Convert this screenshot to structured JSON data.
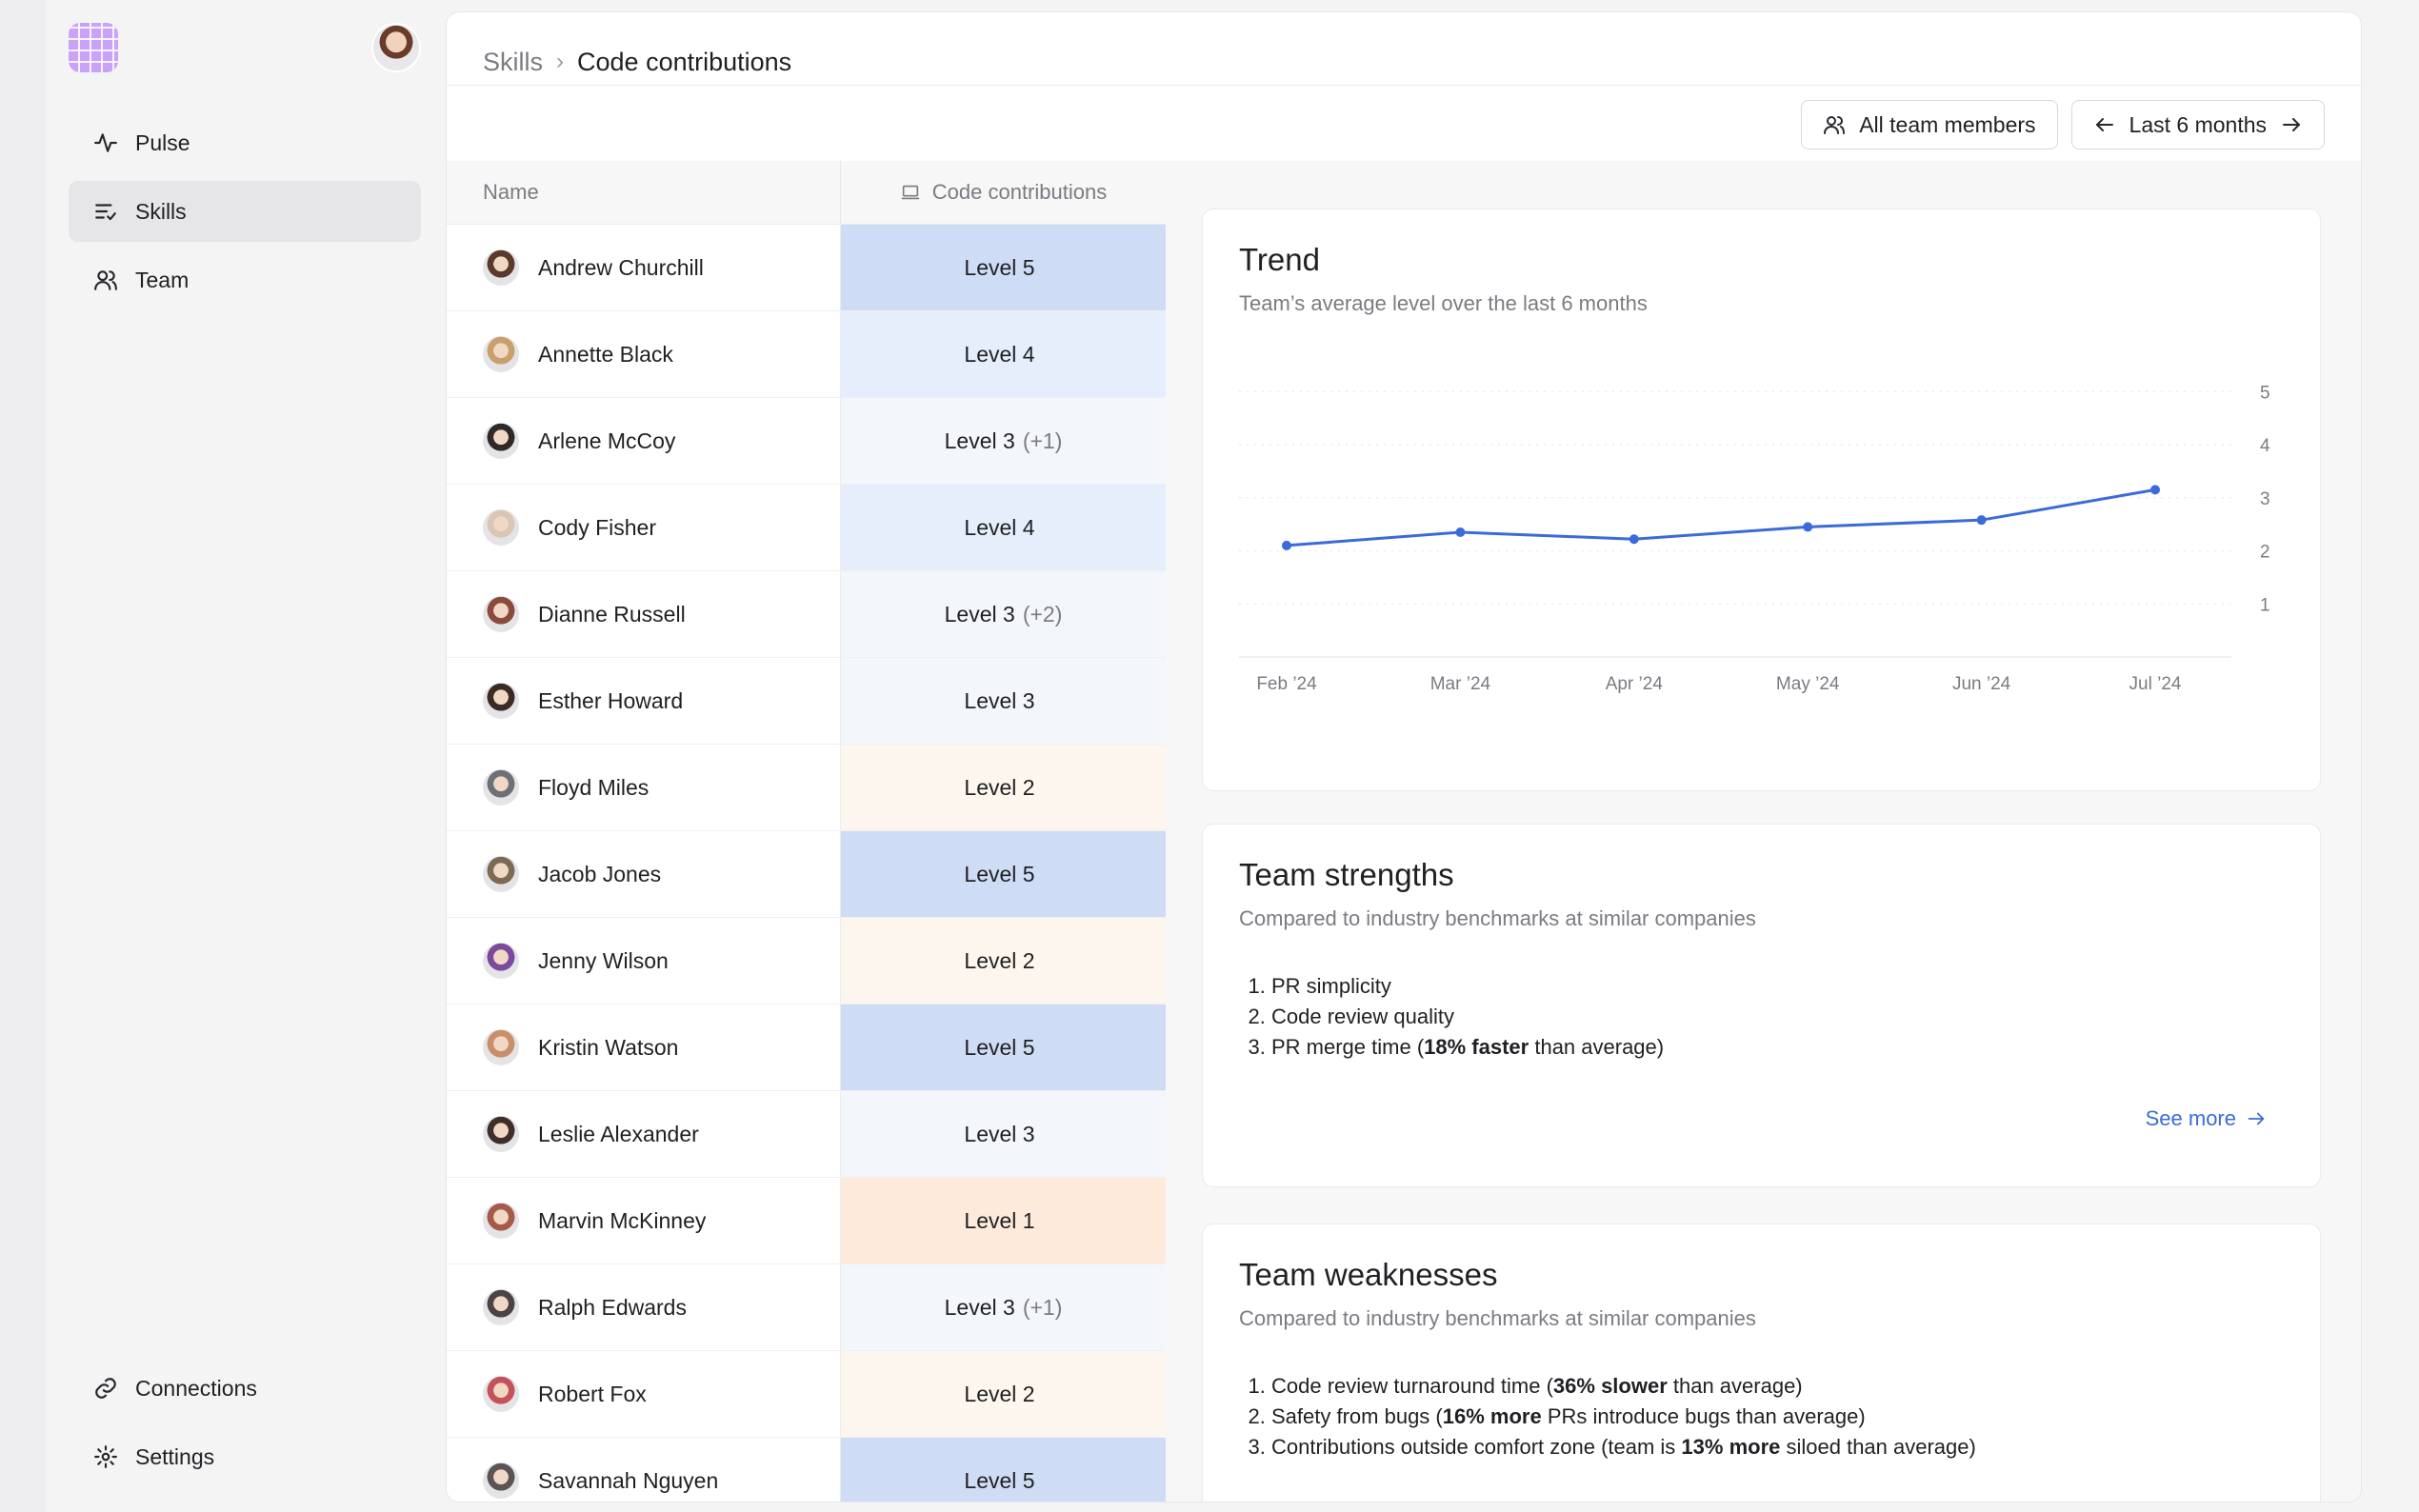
{
  "sidebar": {
    "nav_top": [
      {
        "label": "Pulse",
        "icon": "pulse-icon"
      },
      {
        "label": "Skills",
        "icon": "skills-icon",
        "active": true
      },
      {
        "label": "Team",
        "icon": "team-icon"
      }
    ],
    "nav_bottom": [
      {
        "label": "Connections",
        "icon": "link-icon"
      },
      {
        "label": "Settings",
        "icon": "gear-icon"
      }
    ]
  },
  "breadcrumb": {
    "root": "Skills",
    "separator": "›",
    "current": "Code contributions"
  },
  "filters": {
    "members": "All team members",
    "period": "Last 6 months"
  },
  "table": {
    "header_name": "Name",
    "header_skill": "Code contributions",
    "rows": [
      {
        "name": "Andrew Churchill",
        "level": "Level 5",
        "delta": "",
        "tier": 5
      },
      {
        "name": "Annette Black",
        "level": "Level 4",
        "delta": "",
        "tier": 4
      },
      {
        "name": "Arlene McCoy",
        "level": "Level 3",
        "delta": "(+1)",
        "tier": 3
      },
      {
        "name": "Cody Fisher",
        "level": "Level 4",
        "delta": "",
        "tier": 4
      },
      {
        "name": "Dianne Russell",
        "level": "Level 3",
        "delta": "(+2)",
        "tier": 3
      },
      {
        "name": "Esther Howard",
        "level": "Level 3",
        "delta": "",
        "tier": 3
      },
      {
        "name": "Floyd Miles",
        "level": "Level 2",
        "delta": "",
        "tier": 2
      },
      {
        "name": "Jacob Jones",
        "level": "Level 5",
        "delta": "",
        "tier": 5
      },
      {
        "name": "Jenny Wilson",
        "level": "Level 2",
        "delta": "",
        "tier": 2
      },
      {
        "name": "Kristin Watson",
        "level": "Level 5",
        "delta": "",
        "tier": 5
      },
      {
        "name": "Leslie Alexander",
        "level": "Level 3",
        "delta": "",
        "tier": 3
      },
      {
        "name": "Marvin McKinney",
        "level": "Level 1",
        "delta": "",
        "tier": 1
      },
      {
        "name": "Ralph Edwards",
        "level": "Level 3",
        "delta": "(+1)",
        "tier": 3
      },
      {
        "name": "Robert Fox",
        "level": "Level 2",
        "delta": "",
        "tier": 2
      },
      {
        "name": "Savannah Nguyen",
        "level": "Level 5",
        "delta": "",
        "tier": 5
      }
    ]
  },
  "trend": {
    "title": "Trend",
    "subtitle": "Team’s average level over the last 6 months"
  },
  "chart_data": {
    "type": "line",
    "x": [
      "Feb ’24",
      "Mar ’24",
      "Apr ’24",
      "May ’24",
      "Jun ’24",
      "Jul ’24"
    ],
    "series": [
      {
        "values": [
          2.1,
          2.35,
          2.22,
          2.45,
          2.58,
          3.15
        ]
      }
    ],
    "yticks": [
      1,
      2,
      3,
      4,
      5
    ],
    "ylim": [
      0,
      5
    ],
    "y_axis_side": "right",
    "grid": true,
    "line_color": "#3a6bd8"
  },
  "strengths": {
    "title": "Team strengths",
    "subtitle": "Compared to industry benchmarks at similar companies",
    "item1": "PR simplicity",
    "item2": "Code review quality",
    "item3_pre": "PR merge time (",
    "item3_bold": "18% faster",
    "item3_post": " than average)",
    "see_more": "See more"
  },
  "weaknesses": {
    "title": "Team weaknesses",
    "subtitle": "Compared to industry benchmarks at similar companies",
    "item1_pre": "Code review turnaround time (",
    "item1_bold": "36% slower",
    "item1_post": " than average)",
    "item2_pre": "Safety from bugs (",
    "item2_bold": "16% more",
    "item2_post": " PRs introduce bugs than average)",
    "item3_pre": "Contributions outside comfort zone (team is ",
    "item3_bold": "13% more",
    "item3_post": " siloed than average)"
  }
}
